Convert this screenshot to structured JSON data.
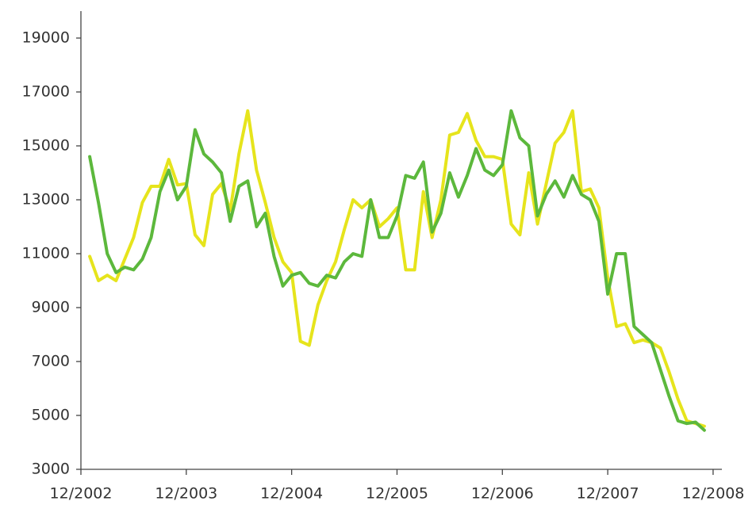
{
  "chart_data": {
    "type": "line",
    "x": [
      "1/2003",
      "2/2003",
      "3/2003",
      "4/2003",
      "5/2003",
      "6/2003",
      "7/2003",
      "8/2003",
      "9/2003",
      "10/2003",
      "11/2003",
      "12/2003",
      "1/2004",
      "2/2004",
      "3/2004",
      "4/2004",
      "5/2004",
      "6/2004",
      "7/2004",
      "8/2004",
      "9/2004",
      "10/2004",
      "11/2004",
      "12/2004",
      "1/2005",
      "2/2005",
      "3/2005",
      "4/2005",
      "5/2005",
      "6/2005",
      "7/2005",
      "8/2005",
      "9/2005",
      "10/2005",
      "11/2005",
      "12/2005",
      "1/2006",
      "2/2006",
      "3/2006",
      "4/2006",
      "5/2006",
      "6/2006",
      "7/2006",
      "8/2006",
      "9/2006",
      "10/2006",
      "11/2006",
      "12/2006",
      "1/2007",
      "2/2007",
      "3/2007",
      "4/2007",
      "5/2007",
      "6/2007",
      "7/2007",
      "8/2007",
      "9/2007",
      "10/2007",
      "11/2007",
      "12/2007",
      "1/2008",
      "2/2008",
      "3/2008",
      "4/2008",
      "5/2008",
      "6/2008",
      "7/2008",
      "8/2008",
      "9/2008",
      "10/2008",
      "11/2008"
    ],
    "series": [
      {
        "color": "#e6e41c",
        "values": [
          10900,
          10000,
          10200,
          10000,
          10800,
          11600,
          12900,
          13500,
          13500,
          14500,
          13550,
          13600,
          11700,
          11300,
          13200,
          13600,
          12600,
          14700,
          16300,
          14100,
          12900,
          11600,
          10700,
          10300,
          7750,
          7600,
          9100,
          10000,
          10700,
          11900,
          13000,
          12700,
          13000,
          12000,
          12300,
          12700,
          10400,
          10400,
          13300,
          11600,
          13000,
          15400,
          15500,
          16200,
          15200,
          14600,
          14600,
          14500,
          12100,
          11700,
          14000,
          12100,
          13600,
          15100,
          15500,
          16300,
          13300,
          13400,
          12700,
          10100,
          8300,
          8400,
          7700,
          7800,
          7700,
          7500,
          6600,
          5600,
          4800,
          4700,
          4600
        ]
      },
      {
        "color": "#5cb83c",
        "values": [
          14600,
          12900,
          11000,
          10300,
          10500,
          10400,
          10800,
          11600,
          13300,
          14100,
          13000,
          13500,
          15600,
          14700,
          14400,
          14000,
          12200,
          13500,
          13700,
          12000,
          12500,
          10900,
          9800,
          10200,
          10300,
          9900,
          9800,
          10200,
          10100,
          10700,
          11000,
          10900,
          13000,
          11600,
          11600,
          12400,
          13900,
          13800,
          14400,
          11800,
          12500,
          14000,
          13100,
          13900,
          14900,
          14100,
          13900,
          14300,
          16300,
          15300,
          15000,
          12400,
          13200,
          13700,
          13100,
          13900,
          13200,
          13000,
          12200,
          9500,
          11000,
          11000,
          8300,
          8000,
          7700,
          6700,
          5700,
          4800,
          4700,
          4750,
          4450
        ]
      }
    ],
    "xlim": [
      "12/2002",
      "1/2009"
    ],
    "xticks": [
      "12/2002",
      "12/2003",
      "12/2004",
      "12/2005",
      "12/2006",
      "12/2007",
      "12/2008"
    ],
    "ylim": [
      3000,
      20000
    ],
    "yticks": [
      3000,
      5000,
      7000,
      9000,
      11000,
      13000,
      15000,
      17000,
      19000
    ]
  }
}
